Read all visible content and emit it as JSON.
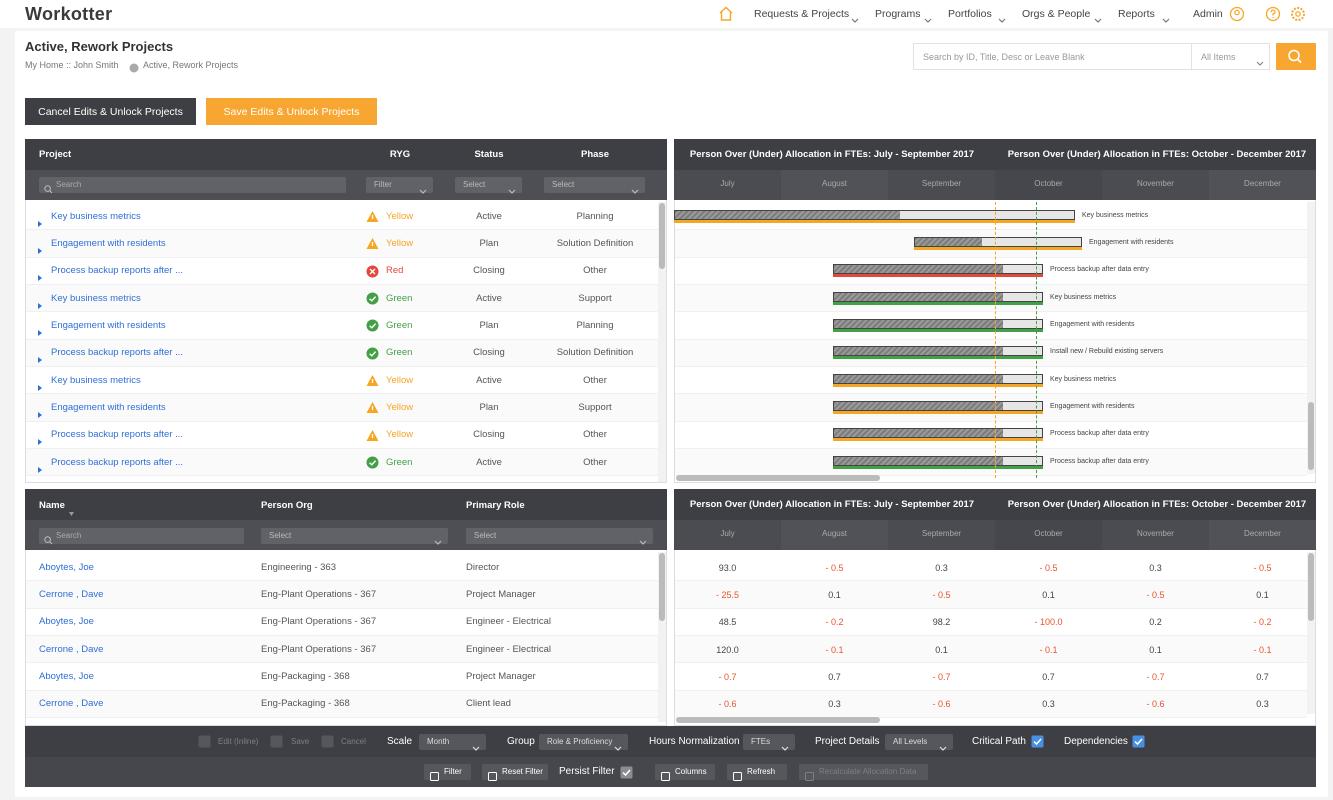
{
  "header": {
    "logo": "Workotter",
    "nav": [
      "Requests & Projects",
      "Programs",
      "Portfolios",
      "Orgs & People",
      "Reports"
    ],
    "user": "Admin"
  },
  "page": {
    "title": "Active, Rework Projects",
    "breadcrumb": [
      "My Home :: John Smith",
      "Active, Rework Projects"
    ]
  },
  "search": {
    "placeholder": "Search by ID, Title, Desc or Leave Blank",
    "scope": "All Items"
  },
  "actions": [
    "Cancel Edits & Unlock Projects",
    "Save Edits & Unlock Projects"
  ],
  "projects": {
    "columns": [
      "Project",
      "RYG",
      "Status",
      "Phase"
    ],
    "filters": [
      "Search",
      "Filter",
      "Select",
      "Select"
    ],
    "rows": [
      [
        "Key business metrics",
        "Yellow",
        "Active",
        "Planning"
      ],
      [
        "Engagement with residents",
        "Yellow",
        "Plan",
        "Solution Definition"
      ],
      [
        "Process backup reports after ...",
        "Red",
        "Closing",
        "Other"
      ],
      [
        "Key business metrics",
        "Green",
        "Active",
        "Support"
      ],
      [
        "Engagement with residents",
        "Green",
        "Plan",
        "Planning"
      ],
      [
        "Process backup reports after ...",
        "Green",
        "Closing",
        "Solution Definition"
      ],
      [
        "Key business metrics",
        "Yellow",
        "Active",
        "Other"
      ],
      [
        "Engagement with residents",
        "Yellow",
        "Plan",
        "Support"
      ],
      [
        "Process backup reports after ...",
        "Yellow",
        "Closing",
        "Other"
      ],
      [
        "Process backup reports after ...",
        "Green",
        "Active",
        "Other"
      ]
    ]
  },
  "timeline": {
    "periods": [
      "Person Over (Under) Allocation in FTEs: July - September 2017",
      "Person Over (Under) Allocation in FTEs: October - December 2017"
    ],
    "months": [
      "July",
      "August",
      "September",
      "October",
      "November",
      "December"
    ],
    "bars": [
      "Key business metrics",
      "Engagement with residents",
      "Process backup after data entry",
      "Key business metrics",
      "Engagement with residents",
      "Install new / Rebuild existing servers",
      "Key business metrics",
      "Engagement with residents",
      "Process backup after data entry",
      "Process backup after data entry"
    ]
  },
  "people": {
    "columns": [
      "Name",
      "Person Org",
      "Primary Role"
    ],
    "filters": [
      "Search",
      "Select",
      "Select"
    ],
    "rows": [
      [
        "Aboytes, Joe",
        "Engineering - 363",
        "Director"
      ],
      [
        "Cerrone , Dave",
        "Eng-Plant Operations - 367",
        "Project Manager"
      ],
      [
        "Aboytes, Joe",
        "Eng-Plant Operations - 367",
        "Engineer - Electrical"
      ],
      [
        "Cerrone , Dave",
        "Eng-Plant Operations - 367",
        "Engineer - Electrical"
      ],
      [
        "Aboytes, Joe",
        "Eng-Packaging - 368",
        "Project Manager"
      ],
      [
        "Cerrone , Dave",
        "Eng-Packaging - 368",
        "Client lead"
      ]
    ]
  },
  "allocation": {
    "periods": [
      "Person Over (Under) Allocation in FTEs: July - September 2017",
      "Person Over (Under) Allocation in FTEs: October - December 2017"
    ],
    "months": [
      "July",
      "August",
      "September",
      "October",
      "November",
      "December"
    ],
    "rows": [
      [
        "93.0",
        "- 0.5",
        "0.3",
        "- 0.5",
        "0.3",
        "- 0.5"
      ],
      [
        "- 25.5",
        "0.1",
        "- 0.5",
        "0.1",
        "- 0.5",
        "0.1"
      ],
      [
        "48.5",
        "- 0.2",
        "98.2",
        "- 100.0",
        "0.2",
        "- 0.2"
      ],
      [
        "120.0",
        "- 0.1",
        "0.1",
        "- 0.1",
        "0.1",
        "- 0.1"
      ],
      [
        "- 0.7",
        "0.7",
        "- 0.7",
        "0.7",
        "- 0.7",
        "0.7"
      ],
      [
        "- 0.6",
        "0.3",
        "- 0.6",
        "0.3",
        "- 0.6",
        "0.3"
      ]
    ]
  },
  "toolbar": {
    "edit": [
      "Edit (Inline)",
      "Save",
      "Cancel"
    ],
    "settings": [
      {
        "label": "Scale",
        "value": "Month"
      },
      {
        "label": "Group",
        "value": "Role & Proficiency"
      },
      {
        "label": "Hours Normalization",
        "value": "FTEs"
      },
      {
        "label": "Project Details",
        "value": "All Levels"
      }
    ],
    "toggles": [
      "Critical Path",
      "Dependencies"
    ],
    "filters": [
      "Filter",
      "Reset Filter"
    ],
    "persist": "Persist Filter",
    "tools": [
      "Columns",
      "Refresh",
      "Recalculate Allocation Data"
    ]
  }
}
